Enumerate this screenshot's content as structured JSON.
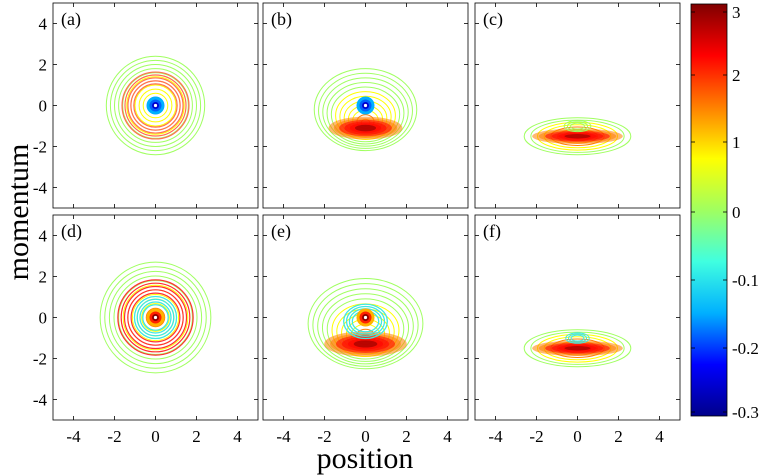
{
  "chart_data": {
    "type": "contour",
    "xlabel": "position",
    "ylabel": "momentum",
    "xlim": [
      -5,
      5
    ],
    "ylim": [
      -5,
      5
    ],
    "xticks": [
      "-4",
      "-2",
      "0",
      "2",
      "4"
    ],
    "yticks": [
      "4",
      "2",
      "0",
      "-2",
      "-4"
    ],
    "colorbar": {
      "range": [
        -0.3,
        3.1
      ],
      "ticks": [
        "3",
        "2",
        "1",
        "0",
        "-0.1",
        "-0.2",
        "-0.3"
      ],
      "colors": [
        "#00008a",
        "#0000ff",
        "#00b0ff",
        "#40ffe0",
        "#a0ff60",
        "#ffff00",
        "#ff8000",
        "#ff0000",
        "#800000"
      ]
    },
    "panels": [
      {
        "label": "(a)",
        "cx": 0,
        "cy": 0,
        "sx": 2.4,
        "sy": 2.4,
        "center": "negative",
        "band": "ring"
      },
      {
        "label": "(b)",
        "cx": 0,
        "cy": -0.2,
        "sx": 2.5,
        "sy": 2.0,
        "center": "negative",
        "band": "lower-arc"
      },
      {
        "label": "(c)",
        "cx": 0,
        "cy": -1.5,
        "sx": 2.6,
        "sy": 0.9,
        "center": "none",
        "band": "lower-bar"
      },
      {
        "label": "(d)",
        "cx": 0,
        "cy": 0,
        "sx": 2.7,
        "sy": 2.7,
        "center": "positive",
        "band": "ring-cyan"
      },
      {
        "label": "(e)",
        "cx": 0,
        "cy": -0.3,
        "sx": 2.8,
        "sy": 2.2,
        "center": "positive",
        "band": "lower-arc-cyan"
      },
      {
        "label": "(f)",
        "cx": 0,
        "cy": -1.5,
        "sx": 2.6,
        "sy": 0.9,
        "center": "none",
        "band": "lower-bar-cyan"
      }
    ]
  }
}
